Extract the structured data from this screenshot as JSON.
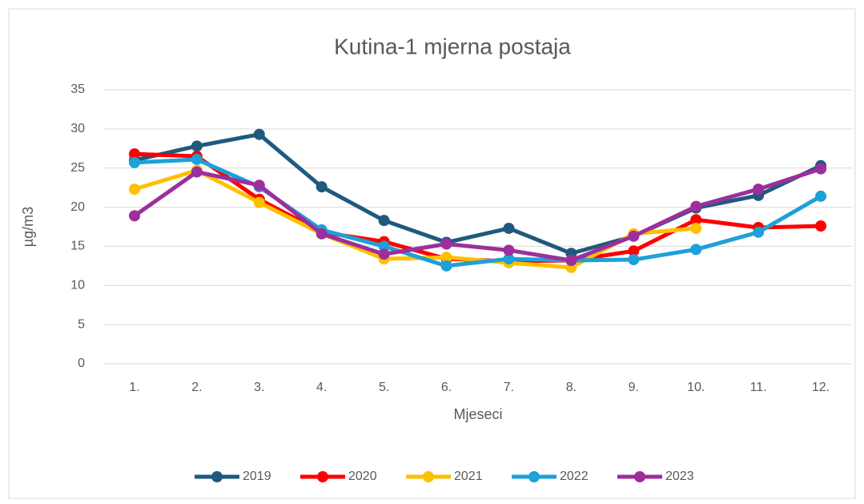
{
  "chart_data": {
    "type": "line",
    "title": "Kutina-1 mjerna postaja",
    "x_label": "Mjeseci",
    "y_label": "µg/m3",
    "categories": [
      "1.",
      "2.",
      "3.",
      "4.",
      "5.",
      "6.",
      "7.",
      "8.",
      "9.",
      "10.",
      "11.",
      "12."
    ],
    "series": [
      {
        "name": "2019",
        "color": "#1f5a7e",
        "values": [
          26.0,
          27.8,
          29.3,
          22.6,
          18.3,
          15.5,
          17.3,
          14.1,
          16.3,
          19.9,
          21.5,
          25.3
        ]
      },
      {
        "name": "2020",
        "color": "#ff0000",
        "values": [
          26.8,
          26.5,
          21.0,
          16.8,
          15.6,
          13.4,
          13.1,
          13.2,
          14.4,
          18.4,
          17.4,
          17.6
        ]
      },
      {
        "name": "2021",
        "color": "#ffc000",
        "values": [
          22.3,
          24.7,
          20.6,
          16.6,
          13.4,
          13.6,
          12.9,
          12.3,
          16.6,
          17.3,
          null,
          null
        ]
      },
      {
        "name": "2022",
        "color": "#1ea0d8",
        "values": [
          25.7,
          26.1,
          22.6,
          17.1,
          15.0,
          12.5,
          13.4,
          13.2,
          13.3,
          14.6,
          16.8,
          21.4
        ]
      },
      {
        "name": "2023",
        "color": "#9c2f9c",
        "values": [
          18.9,
          24.5,
          22.8,
          16.6,
          14.0,
          15.3,
          14.5,
          13.2,
          16.3,
          20.1,
          22.3,
          24.9
        ]
      }
    ],
    "ylim": [
      0,
      35
    ],
    "yticks": [
      0,
      5,
      10,
      15,
      20,
      25,
      30,
      35
    ],
    "grid": true,
    "legend": "bottom"
  }
}
